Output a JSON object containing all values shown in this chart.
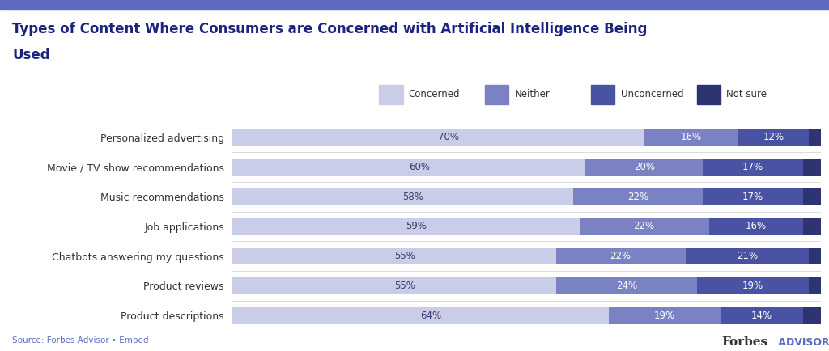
{
  "categories": [
    "Product descriptions",
    "Product reviews",
    "Chatbots answering my questions",
    "Job applications",
    "Music recommendations",
    "Movie / TV show recommendations",
    "Personalized advertising"
  ],
  "concerned": [
    70,
    60,
    58,
    59,
    55,
    55,
    64
  ],
  "neither": [
    16,
    20,
    22,
    22,
    22,
    24,
    19
  ],
  "unconcerned": [
    12,
    17,
    17,
    16,
    21,
    19,
    14
  ],
  "not_sure": [
    2,
    3,
    3,
    3,
    2,
    2,
    3
  ],
  "colors": {
    "concerned": "#c9cde8",
    "neither": "#7b82c4",
    "unconcerned": "#4a52a3",
    "not_sure": "#2e3470"
  },
  "title_line1": "Types of Content Where Consumers are Concerned with Artificial Intelligence Being",
  "title_line2": "Used",
  "legend_labels": [
    "Concerned",
    "Neither",
    "Unconcerned",
    "Not sure"
  ],
  "source_text": "Source: Forbes Advisor • Embed",
  "header_color": "#e8eaf6",
  "header_bar_color": "#5c6bc0",
  "background_color": "#ffffff",
  "title_color": "#1a237e",
  "label_fontsize": 8.5,
  "title_fontsize": 12,
  "bar_height": 0.55
}
